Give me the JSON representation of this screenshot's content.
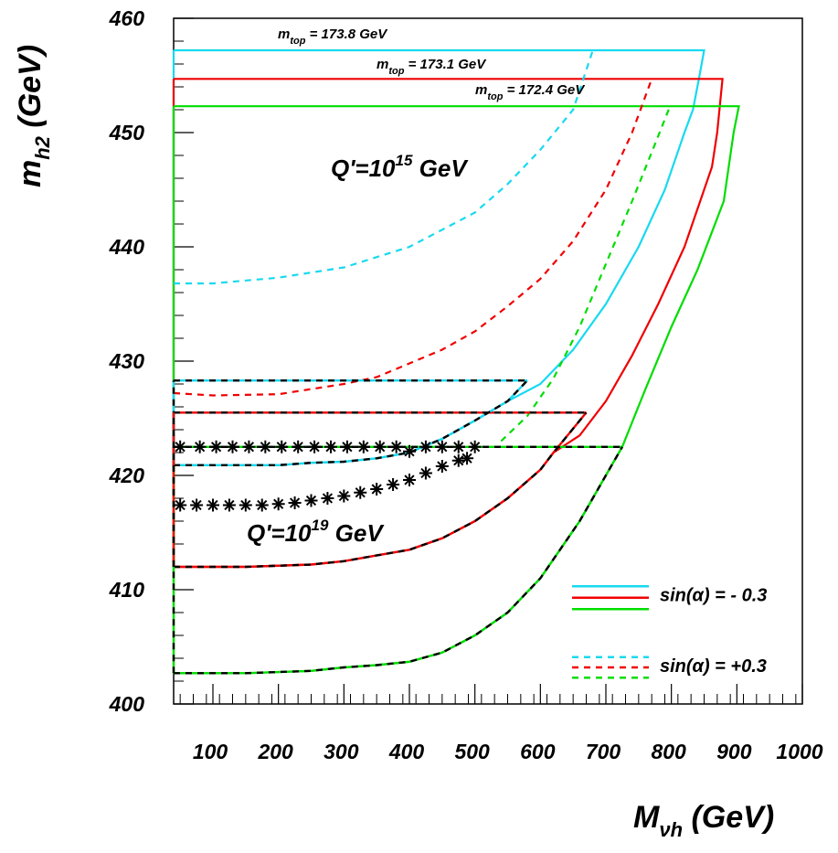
{
  "chart_data": {
    "type": "line",
    "title": "",
    "xlabel": {
      "main": "M",
      "sub": "νh",
      "unit": " (GeV)"
    },
    "ylabel": {
      "main": "m",
      "sub": "h2",
      "unit": " (GeV)"
    },
    "xlim": [
      40,
      1000
    ],
    "ylim": [
      400,
      460
    ],
    "xticks": [
      100,
      200,
      300,
      400,
      500,
      600,
      700,
      800,
      900,
      1000
    ],
    "yticks": [
      400,
      410,
      420,
      430,
      440,
      450,
      460
    ],
    "colors": {
      "cyan": "#17d9f0",
      "red": "#f00000",
      "green": "#00dd00",
      "black": "#000000"
    },
    "annotations": {
      "q15": {
        "prefix": "Q'=10",
        "exp": "15",
        "suffix": " GeV"
      },
      "q19": {
        "prefix": "Q'=10",
        "exp": "19",
        "suffix": " GeV"
      },
      "mtop": [
        {
          "prefix": "m",
          "sub": "top",
          "text": " = 173.8 GeV"
        },
        {
          "prefix": "m",
          "sub": "top",
          "text": " = 173.1 GeV"
        },
        {
          "prefix": "m",
          "sub": "top",
          "text": " = 172.4 GeV"
        }
      ]
    },
    "legend": {
      "position": "bottom-right",
      "entries": [
        {
          "label": "sin(α) = - 0.3",
          "style": "solid"
        },
        {
          "label": "sin(α) = +0.3",
          "style": "dashed"
        }
      ]
    },
    "series": [
      {
        "color": "cyan",
        "style": "solid",
        "points": [
          [
            40,
            457.2
          ],
          [
            850,
            457.2
          ],
          [
            843,
            455
          ],
          [
            833,
            452
          ],
          [
            820,
            450
          ],
          [
            790,
            445
          ],
          [
            750,
            440
          ],
          [
            700,
            435
          ],
          [
            650,
            431
          ],
          [
            600,
            428
          ],
          [
            550,
            426.5
          ],
          [
            500,
            424.8
          ],
          [
            450,
            423.2
          ],
          [
            400,
            422
          ],
          [
            350,
            421.5
          ],
          [
            300,
            421.2
          ],
          [
            250,
            421.1
          ],
          [
            200,
            420.9
          ],
          [
            150,
            420.9
          ],
          [
            40,
            420.9
          ],
          [
            40,
            457.2
          ]
        ]
      },
      {
        "color": "red",
        "style": "solid",
        "points": [
          [
            40,
            454.7
          ],
          [
            878,
            454.7
          ],
          [
            870,
            450
          ],
          [
            862,
            447
          ],
          [
            820,
            440
          ],
          [
            780,
            435
          ],
          [
            740,
            430.5
          ],
          [
            700,
            426.5
          ],
          [
            660,
            423.5
          ],
          [
            620,
            422
          ],
          [
            600,
            420.5
          ],
          [
            550,
            418
          ],
          [
            500,
            416
          ],
          [
            450,
            414.5
          ],
          [
            400,
            413.5
          ],
          [
            350,
            413
          ],
          [
            300,
            412.5
          ],
          [
            250,
            412.2
          ],
          [
            150,
            412
          ],
          [
            40,
            412
          ],
          [
            40,
            454.7
          ]
        ]
      },
      {
        "color": "green",
        "style": "solid",
        "points": [
          [
            40,
            452.3
          ],
          [
            903,
            452.3
          ],
          [
            895,
            450
          ],
          [
            880,
            444
          ],
          [
            840,
            438
          ],
          [
            800,
            433
          ],
          [
            760,
            427.5
          ],
          [
            725,
            422.5
          ],
          [
            690,
            419
          ],
          [
            660,
            416
          ],
          [
            630,
            413.5
          ],
          [
            600,
            411
          ],
          [
            550,
            408
          ],
          [
            500,
            406
          ],
          [
            450,
            404.5
          ],
          [
            400,
            403.7
          ],
          [
            350,
            403.4
          ],
          [
            300,
            403.2
          ],
          [
            250,
            402.9
          ],
          [
            150,
            402.7
          ],
          [
            40,
            402.7
          ],
          [
            40,
            452.3
          ]
        ]
      },
      {
        "color": "cyan",
        "style": "dashed",
        "points": [
          [
            40,
            436.8
          ],
          [
            100,
            436.8
          ],
          [
            200,
            437.3
          ],
          [
            300,
            438.2
          ],
          [
            400,
            440
          ],
          [
            450,
            441.5
          ],
          [
            500,
            443
          ],
          [
            550,
            445.5
          ],
          [
            600,
            448.5
          ],
          [
            650,
            452
          ],
          [
            680,
            457.2
          ]
        ]
      },
      {
        "color": "red",
        "style": "dashed",
        "points": [
          [
            40,
            427.2
          ],
          [
            100,
            427
          ],
          [
            200,
            427.1
          ],
          [
            300,
            428
          ],
          [
            350,
            428.6
          ],
          [
            400,
            429.8
          ],
          [
            450,
            431
          ],
          [
            500,
            432.6
          ],
          [
            550,
            434.8
          ],
          [
            600,
            437.2
          ],
          [
            650,
            440.5
          ],
          [
            700,
            445
          ],
          [
            740,
            450
          ],
          [
            770,
            454.7
          ]
        ]
      },
      {
        "color": "green",
        "style": "dashed",
        "points": [
          [
            540,
            423
          ],
          [
            580,
            425.2
          ],
          [
            620,
            428.5
          ],
          [
            660,
            433
          ],
          [
            700,
            438.5
          ],
          [
            740,
            444
          ],
          [
            775,
            449
          ],
          [
            798,
            452.3
          ]
        ]
      },
      {
        "color": "cyan",
        "style": "dash-overlay",
        "points": [
          [
            40,
            428.3
          ],
          [
            580,
            428.3
          ]
        ]
      },
      {
        "color": "red",
        "style": "dash-overlay",
        "points": [
          [
            40,
            425.5
          ],
          [
            670,
            425.5
          ]
        ]
      },
      {
        "color": "green",
        "style": "dash-overlay",
        "points": [
          [
            40,
            422.5
          ],
          [
            725,
            422.5
          ]
        ]
      },
      {
        "color": "cyan",
        "style": "dash-overlay",
        "points": [
          [
            40,
            420.9
          ],
          [
            150,
            420.9
          ],
          [
            200,
            420.9
          ],
          [
            250,
            421.1
          ],
          [
            300,
            421.2
          ],
          [
            350,
            421.5
          ],
          [
            400,
            422
          ],
          [
            450,
            423.2
          ],
          [
            500,
            424.8
          ],
          [
            550,
            426.5
          ],
          [
            580,
            428.3
          ]
        ]
      },
      {
        "color": "red",
        "style": "dash-overlay",
        "points": [
          [
            40,
            412
          ],
          [
            150,
            412
          ],
          [
            250,
            412.2
          ],
          [
            300,
            412.5
          ],
          [
            350,
            413
          ],
          [
            400,
            413.5
          ],
          [
            450,
            414.5
          ],
          [
            500,
            416
          ],
          [
            550,
            418
          ],
          [
            600,
            420.5
          ],
          [
            620,
            422
          ],
          [
            670,
            425.5
          ]
        ]
      },
      {
        "color": "green",
        "style": "dash-overlay",
        "points": [
          [
            40,
            402.7
          ],
          [
            150,
            402.7
          ],
          [
            250,
            402.9
          ],
          [
            300,
            403.2
          ],
          [
            350,
            403.4
          ],
          [
            400,
            403.7
          ],
          [
            450,
            404.5
          ],
          [
            500,
            406
          ],
          [
            550,
            408
          ],
          [
            600,
            411
          ],
          [
            630,
            413.5
          ],
          [
            660,
            416
          ],
          [
            690,
            419
          ],
          [
            725,
            422.5
          ]
        ]
      },
      {
        "color": "green",
        "style": "dash-overlay",
        "points": [
          [
            40,
            402.7
          ],
          [
            40,
            422.5
          ]
        ]
      },
      {
        "color": "cyan",
        "style": "dash-overlay",
        "points": [
          [
            40,
            420.9
          ],
          [
            40,
            428.3
          ]
        ]
      },
      {
        "color": "red",
        "style": "dash-overlay",
        "points": [
          [
            40,
            412
          ],
          [
            40,
            425.5
          ]
        ]
      },
      {
        "color": "black",
        "style": "stars",
        "points": [
          [
            50,
            422.5
          ],
          [
            80,
            422.5
          ],
          [
            105,
            422.5
          ],
          [
            130,
            422.5
          ],
          [
            155,
            422.5
          ],
          [
            180,
            422.5
          ],
          [
            205,
            422.5
          ],
          [
            230,
            422.5
          ],
          [
            255,
            422.5
          ],
          [
            280,
            422.5
          ],
          [
            305,
            422.5
          ],
          [
            330,
            422.5
          ],
          [
            355,
            422.5
          ],
          [
            380,
            422.5
          ],
          [
            400,
            422.1
          ],
          [
            425,
            422.5
          ],
          [
            450,
            422.5
          ],
          [
            475,
            422.5
          ],
          [
            500,
            422.5
          ],
          [
            488,
            421.5
          ]
        ]
      },
      {
        "color": "black",
        "style": "stars",
        "points": [
          [
            50,
            417.4
          ],
          [
            75,
            417.4
          ],
          [
            100,
            417.4
          ],
          [
            125,
            417.4
          ],
          [
            150,
            417.4
          ],
          [
            175,
            417.4
          ],
          [
            200,
            417.5
          ],
          [
            225,
            417.6
          ],
          [
            250,
            417.8
          ],
          [
            275,
            418
          ],
          [
            300,
            418.2
          ],
          [
            325,
            418.5
          ],
          [
            350,
            418.8
          ],
          [
            375,
            419.2
          ],
          [
            400,
            419.6
          ],
          [
            425,
            420.2
          ],
          [
            450,
            420.8
          ],
          [
            475,
            421.3
          ]
        ]
      }
    ],
    "legend_swatches": [
      {
        "color": "cyan",
        "style": "solid",
        "y": 410.3
      },
      {
        "color": "red",
        "style": "solid",
        "y": 409.3
      },
      {
        "color": "green",
        "style": "solid",
        "y": 408.3
      },
      {
        "color": "cyan",
        "style": "dashed",
        "y": 404.1
      },
      {
        "color": "red",
        "style": "dashed",
        "y": 403.2
      },
      {
        "color": "green",
        "style": "dashed",
        "y": 402.3
      }
    ]
  }
}
